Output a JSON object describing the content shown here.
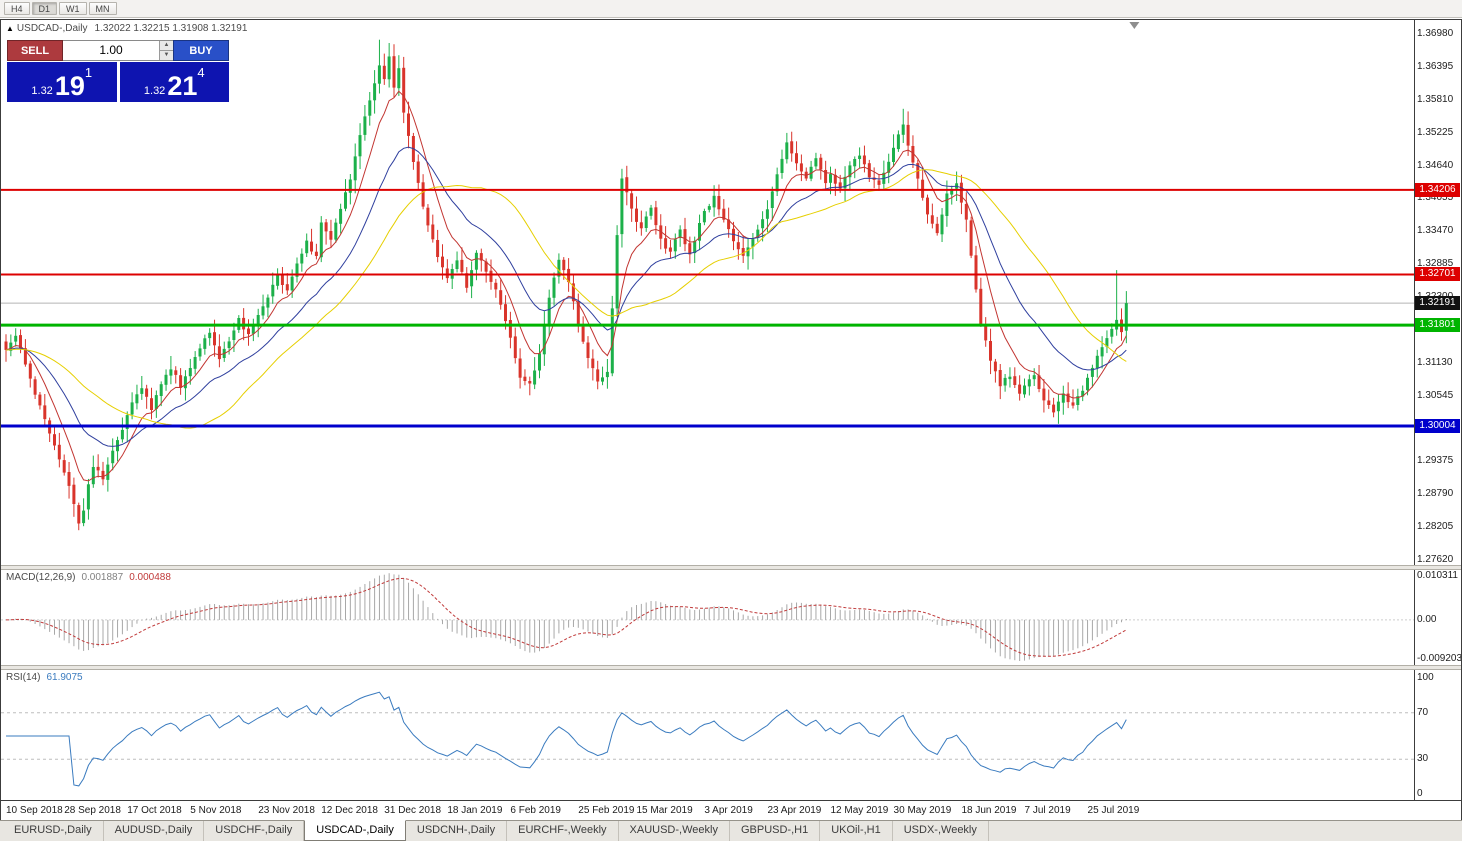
{
  "toolbar": {
    "periods": [
      "H4",
      "D1",
      "W1",
      "MN"
    ],
    "active_period": "D1"
  },
  "chart": {
    "title_arrow": "▲",
    "symbol_label": "USDCAD-,Daily",
    "ohlc_text": "1.32022 1.32215 1.31908 1.32191",
    "open": "1.32022",
    "high": "1.32215",
    "low": "1.31908",
    "close": "1.32191"
  },
  "trade_widget": {
    "sell_label": "SELL",
    "buy_label": "BUY",
    "volume": "1.00",
    "bid": {
      "prefix": "1.32",
      "figure": "19",
      "pip": "1",
      "value": "1.32191"
    },
    "ask": {
      "prefix": "1.32",
      "figure": "21",
      "pip": "4",
      "value": "1.32214"
    },
    "colors": {
      "sell": "#ad3a3e",
      "buy": "#2950c8",
      "panel": "#0e14b0"
    }
  },
  "price_axis": {
    "labels": [
      "1.36980",
      "1.36395",
      "1.35810",
      "1.35225",
      "1.34640",
      "1.34055",
      "1.33470",
      "1.32885",
      "1.32300",
      "1.31715",
      "1.31130",
      "1.30545",
      "1.29960",
      "1.29375",
      "1.28790",
      "1.28205",
      "1.27620"
    ]
  },
  "levels": [
    {
      "price": 1.34206,
      "label": "1.34206",
      "color": "#dd0000",
      "width": 2
    },
    {
      "price": 1.32701,
      "label": "1.32701",
      "color": "#dd0000",
      "width": 2
    },
    {
      "price": 1.31801,
      "label": "1.31801",
      "color": "#00b400",
      "width": 3
    },
    {
      "price": 1.30004,
      "label": "1.30004",
      "color": "#0000cc",
      "width": 3
    }
  ],
  "current_price": {
    "value": 1.32191,
    "label": "1.32191",
    "badge_color": "#111111",
    "line_color": "#b4b4b4"
  },
  "macd": {
    "header": "MACD(12,26,9)",
    "value_main": "0.001887",
    "value_signal": "0.000488",
    "axis": [
      {
        "value": 0.010311,
        "label": "0.010311"
      },
      {
        "value": 0,
        "label": "0.00"
      },
      {
        "value": -0.009203,
        "label": "-0.0092030"
      }
    ],
    "colors": {
      "histogram": "#a8a8a8",
      "signal": "#c03a3a",
      "value_main": "#808080",
      "value_signal": "#c03a3a"
    }
  },
  "rsi": {
    "header": "RSI(14)",
    "value": "61.9075",
    "axis": [
      {
        "value": 100,
        "label": "100"
      },
      {
        "value": 70,
        "label": "70"
      },
      {
        "value": 30,
        "label": "30"
      },
      {
        "value": 0,
        "label": "0"
      }
    ],
    "levels": [
      70,
      30
    ],
    "color": "#3a7bbf"
  },
  "time_axis": {
    "ticks": [
      {
        "bar": 0,
        "label": "10 Sep 2018"
      },
      {
        "bar": 12,
        "label": "28 Sep 2018"
      },
      {
        "bar": 25,
        "label": "17 Oct 2018"
      },
      {
        "bar": 38,
        "label": "5 Nov 2018"
      },
      {
        "bar": 52,
        "label": "23 Nov 2018"
      },
      {
        "bar": 65,
        "label": "12 Dec 2018"
      },
      {
        "bar": 78,
        "label": "31 Dec 2018"
      },
      {
        "bar": 91,
        "label": "18 Jan 2019"
      },
      {
        "bar": 104,
        "label": "6 Feb 2019"
      },
      {
        "bar": 118,
        "label": "25 Feb 2019"
      },
      {
        "bar": 130,
        "label": "15 Mar 2019"
      },
      {
        "bar": 144,
        "label": "3 Apr 2019"
      },
      {
        "bar": 157,
        "label": "23 Apr 2019"
      },
      {
        "bar": 170,
        "label": "12 May 2019"
      },
      {
        "bar": 183,
        "label": "30 May 2019"
      },
      {
        "bar": 197,
        "label": "18 Jun 2019"
      },
      {
        "bar": 210,
        "label": "7 Jul 2019"
      },
      {
        "bar": 223,
        "label": "25 Jul 2019"
      }
    ]
  },
  "tabs": {
    "items": [
      "EURUSD-,Daily",
      "AUDUSD-,Daily",
      "USDCHF-,Daily",
      "USDCAD-,Daily",
      "USDCNH-,Daily",
      "EURCHF-,Weekly",
      "XAUUSD-,Weekly",
      "GBPUSD-,H1",
      "UKOil-,H1",
      "USDX-,Weekly"
    ],
    "active": "USDCAD-,Daily"
  },
  "chart_data": {
    "type": "candlestick",
    "symbol": "USDCAD",
    "timeframe": "Daily",
    "bars": 232,
    "seed": 42,
    "ylim": [
      1.27531,
      1.3723
    ],
    "bar_step": 4.85,
    "first_bar_x": 5,
    "candle_width": 3,
    "colors": {
      "up": "#1cb04a",
      "down": "#d9342b"
    },
    "close_anchors": [
      [
        0,
        1.3135
      ],
      [
        2,
        1.316
      ],
      [
        4,
        1.311
      ],
      [
        6,
        1.306
      ],
      [
        8,
        1.301
      ],
      [
        10,
        1.2965
      ],
      [
        12,
        1.292
      ],
      [
        14,
        1.2865
      ],
      [
        15,
        1.283
      ],
      [
        16,
        1.285
      ],
      [
        17,
        1.2895
      ],
      [
        18,
        1.293
      ],
      [
        20,
        1.2905
      ],
      [
        22,
        1.2955
      ],
      [
        24,
        1.2995
      ],
      [
        26,
        1.3045
      ],
      [
        28,
        1.307
      ],
      [
        30,
        1.303
      ],
      [
        32,
        1.3075
      ],
      [
        34,
        1.3105
      ],
      [
        36,
        1.307
      ],
      [
        38,
        1.3105
      ],
      [
        40,
        1.314
      ],
      [
        42,
        1.317
      ],
      [
        44,
        1.312
      ],
      [
        46,
        1.315
      ],
      [
        48,
        1.319
      ],
      [
        50,
        1.316
      ],
      [
        52,
        1.3195
      ],
      [
        54,
        1.323
      ],
      [
        56,
        1.327
      ],
      [
        58,
        1.324
      ],
      [
        60,
        1.329
      ],
      [
        62,
        1.333
      ],
      [
        64,
        1.33
      ],
      [
        65,
        1.336
      ],
      [
        67,
        1.333
      ],
      [
        69,
        1.339
      ],
      [
        71,
        1.344
      ],
      [
        73,
        1.352
      ],
      [
        75,
        1.358
      ],
      [
        77,
        1.364
      ],
      [
        78,
        1.3615
      ],
      [
        79,
        1.3655
      ],
      [
        80,
        1.36
      ],
      [
        81,
        1.364
      ],
      [
        82,
        1.356
      ],
      [
        84,
        1.347
      ],
      [
        86,
        1.339
      ],
      [
        88,
        1.333
      ],
      [
        90,
        1.328
      ],
      [
        91,
        1.3265
      ],
      [
        93,
        1.3295
      ],
      [
        95,
        1.325
      ],
      [
        97,
        1.331
      ],
      [
        99,
        1.3275
      ],
      [
        101,
        1.324
      ],
      [
        103,
        1.319
      ],
      [
        104,
        1.316
      ],
      [
        106,
        1.309
      ],
      [
        108,
        1.3075
      ],
      [
        110,
        1.313
      ],
      [
        112,
        1.323
      ],
      [
        114,
        1.33
      ],
      [
        116,
        1.326
      ],
      [
        118,
        1.318
      ],
      [
        120,
        1.312
      ],
      [
        122,
        1.308
      ],
      [
        124,
        1.3095
      ],
      [
        125,
        1.321
      ],
      [
        126,
        1.334
      ],
      [
        127,
        1.344
      ],
      [
        129,
        1.3385
      ],
      [
        131,
        1.335
      ],
      [
        133,
        1.339
      ],
      [
        135,
        1.333
      ],
      [
        137,
        1.331
      ],
      [
        139,
        1.335
      ],
      [
        141,
        1.3305
      ],
      [
        143,
        1.336
      ],
      [
        144,
        1.338
      ],
      [
        146,
        1.341
      ],
      [
        148,
        1.337
      ],
      [
        150,
        1.333
      ],
      [
        152,
        1.3305
      ],
      [
        154,
        1.333
      ],
      [
        156,
        1.337
      ],
      [
        157,
        1.339
      ],
      [
        159,
        1.345
      ],
      [
        161,
        1.3505
      ],
      [
        163,
        1.3465
      ],
      [
        165,
        1.344
      ],
      [
        167,
        1.348
      ],
      [
        169,
        1.3435
      ],
      [
        170,
        1.345
      ],
      [
        172,
        1.342
      ],
      [
        174,
        1.3465
      ],
      [
        176,
        1.3485
      ],
      [
        178,
        1.344
      ],
      [
        180,
        1.343
      ],
      [
        182,
        1.347
      ],
      [
        184,
        1.352
      ],
      [
        185,
        1.354
      ],
      [
        186,
        1.35
      ],
      [
        188,
        1.344
      ],
      [
        190,
        1.3375
      ],
      [
        192,
        1.334
      ],
      [
        194,
        1.3415
      ],
      [
        196,
        1.343
      ],
      [
        198,
        1.337
      ],
      [
        199,
        1.33
      ],
      [
        200,
        1.324
      ],
      [
        201,
        1.318
      ],
      [
        203,
        1.312
      ],
      [
        205,
        1.3075
      ],
      [
        207,
        1.309
      ],
      [
        209,
        1.3055
      ],
      [
        210,
        1.307
      ],
      [
        212,
        1.309
      ],
      [
        214,
        1.3045
      ],
      [
        216,
        1.3025
      ],
      [
        218,
        1.3055
      ],
      [
        220,
        1.3035
      ],
      [
        222,
        1.3065
      ],
      [
        223,
        1.309
      ],
      [
        225,
        1.3125
      ],
      [
        227,
        1.3155
      ],
      [
        229,
        1.319
      ],
      [
        230,
        1.317
      ],
      [
        231,
        1.32191
      ]
    ],
    "wick_overrides": [
      [
        15,
        "low",
        1.2815
      ],
      [
        77,
        "high",
        1.3688
      ],
      [
        79,
        "high",
        1.3682
      ],
      [
        161,
        "high",
        1.3522
      ],
      [
        185,
        "high",
        1.3565
      ],
      [
        216,
        "low",
        1.3016
      ],
      [
        229,
        "high",
        1.3278
      ]
    ],
    "moving_averages": [
      {
        "name": "fast-ma",
        "type": "ema",
        "period": 8,
        "color": "#c23531"
      },
      {
        "name": "medium-ma",
        "type": "ema",
        "period": 21,
        "color": "#2f3f9e"
      },
      {
        "name": "slow-ma",
        "type": "sma",
        "period": 34,
        "color": "#e6cf00"
      }
    ],
    "macd_params": {
      "fast": 12,
      "slow": 26,
      "signal": 9,
      "ylim": [
        -0.009203,
        0.010311
      ]
    },
    "rsi_params": {
      "period": 14,
      "ylim": [
        0,
        100
      ]
    }
  }
}
